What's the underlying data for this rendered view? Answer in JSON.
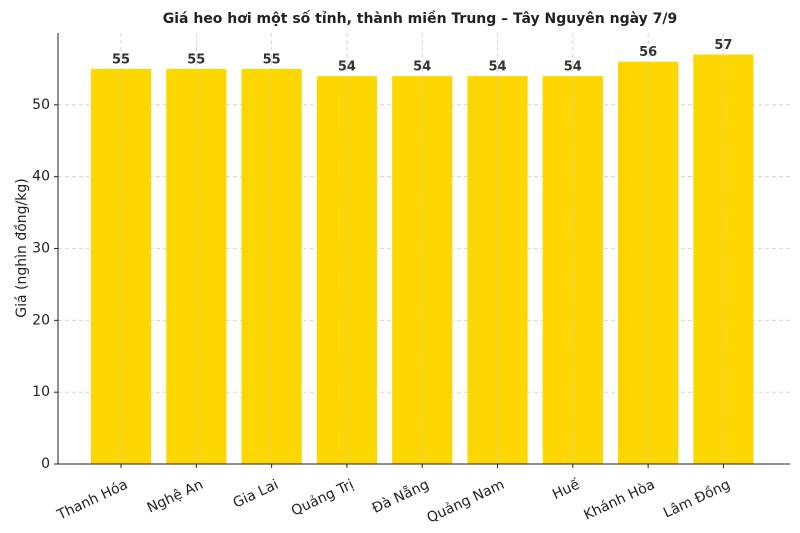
{
  "chart_data": {
    "type": "bar",
    "title": "Giá heo hơi một số tỉnh, thành miền Trung – Tây Nguyên ngày 7/9",
    "y_label": "Giá (nghìn đồng/kg)",
    "categories": [
      "Thanh Hóa",
      "Nghệ An",
      "Gia Lai",
      "Quảng Trị",
      "Đà Nẵng",
      "Quảng Nam",
      "Huế",
      "Khánh Hòa",
      "Lâm Đồng"
    ],
    "values": [
      55,
      55,
      55,
      54,
      54,
      54,
      54,
      56,
      57
    ],
    "color": "#ffd700",
    "ylim": [
      0,
      60
    ],
    "yticks": [
      0,
      10,
      20,
      30,
      40,
      50
    ],
    "grid": true
  }
}
